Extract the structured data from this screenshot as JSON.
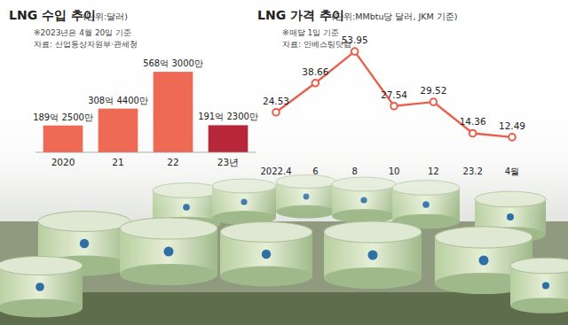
{
  "chart_data": [
    {
      "type": "bar",
      "title": "LNG 수입 추이",
      "subtitle": "(단위:달러)",
      "annotations": [
        "※2023년은 4월 20일 기준",
        "자료: 산업통상자원부·관세청"
      ],
      "categories": [
        "2020",
        "21",
        "22",
        "23년"
      ],
      "values": [
        18925000000,
        30844000000,
        56830000000,
        19123000000
      ],
      "value_labels": [
        "189억 2500만",
        "308억 4400만",
        "568억 3000만",
        "191억 2300만"
      ],
      "colors": [
        "#ee6a55",
        "#ee6a55",
        "#ee6a55",
        "#b8263a"
      ],
      "ylim": [
        0,
        60000000000
      ],
      "tick_labels": "x",
      "grid": false
    },
    {
      "type": "line",
      "title": "LNG 가격 추이",
      "subtitle": "(단위:MMbtu당 달러, JKM 기준)",
      "annotations": [
        "※매달 1일 기준",
        "자료: 인베스팅닷컴"
      ],
      "categories": [
        "2022.4",
        "6",
        "8",
        "10",
        "12",
        "23.2",
        "4월"
      ],
      "values": [
        24.53,
        38.66,
        53.95,
        27.54,
        29.52,
        14.36,
        12.49
      ],
      "color": "#e8604c",
      "marker": "circle",
      "ylim": [
        0,
        60
      ],
      "tick_labels": "x",
      "data_labels": true,
      "grid": false
    }
  ]
}
